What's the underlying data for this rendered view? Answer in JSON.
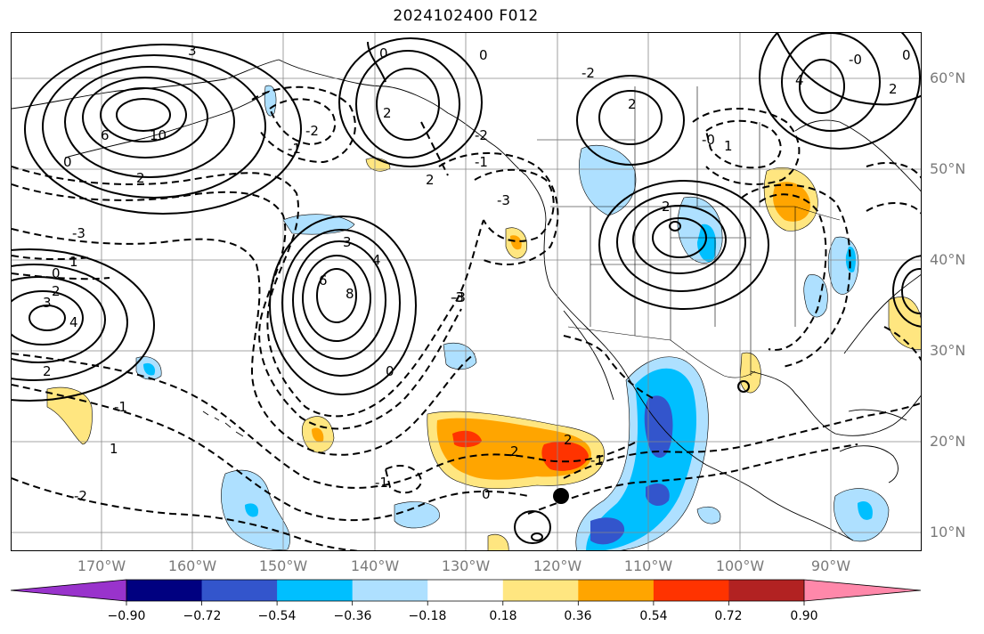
{
  "title": "2024102400 F012",
  "latitude_labels": [
    "60°N",
    "50°N",
    "40°N",
    "30°N",
    "20°N",
    "10°N"
  ],
  "longitude_labels": [
    "170°W",
    "160°W",
    "150°W",
    "140°W",
    "130°W",
    "120°W",
    "110°W",
    "100°W",
    "90°W"
  ],
  "colorbar": {
    "ticks": [
      "−0.90",
      "−0.72",
      "−0.54",
      "−0.36",
      "−0.18",
      "0.18",
      "0.36",
      "0.54",
      "0.72",
      "0.90"
    ],
    "colors": [
      "#9933cc",
      "#000080",
      "#3355cc",
      "#00bfff",
      "#aee0ff",
      "#ffffff",
      "#ffe680",
      "#ffa500",
      "#ff3300",
      "#b22222",
      "#ff88aa"
    ]
  },
  "contour_labels": [
    {
      "text": "3"
    },
    {
      "text": "6"
    },
    {
      "text": "10"
    },
    {
      "text": "0"
    },
    {
      "text": "2"
    },
    {
      "text": "-1"
    },
    {
      "text": "-2"
    },
    {
      "text": "-3"
    },
    {
      "text": "2"
    },
    {
      "text": "0"
    },
    {
      "text": "2"
    },
    {
      "text": "0"
    },
    {
      "text": "-2"
    },
    {
      "text": "-1"
    },
    {
      "text": "-3"
    },
    {
      "text": "-3"
    },
    {
      "text": "0"
    },
    {
      "text": "1"
    },
    {
      "text": "2"
    },
    {
      "text": "3"
    },
    {
      "text": "4"
    },
    {
      "text": "-1"
    },
    {
      "text": "-2"
    },
    {
      "text": "2"
    },
    {
      "text": "1"
    },
    {
      "text": "3"
    },
    {
      "text": "4"
    },
    {
      "text": "6"
    },
    {
      "text": "8"
    },
    {
      "text": "0"
    },
    {
      "text": "-3"
    },
    {
      "text": "-1"
    },
    {
      "text": "2"
    },
    {
      "text": "2"
    },
    {
      "text": "-1"
    },
    {
      "text": "0"
    },
    {
      "text": "-2"
    },
    {
      "text": "2"
    },
    {
      "text": "-0"
    },
    {
      "text": "1"
    },
    {
      "text": "2"
    },
    {
      "text": "4"
    },
    {
      "text": "-0"
    },
    {
      "text": "0"
    },
    {
      "text": "2"
    }
  ]
}
